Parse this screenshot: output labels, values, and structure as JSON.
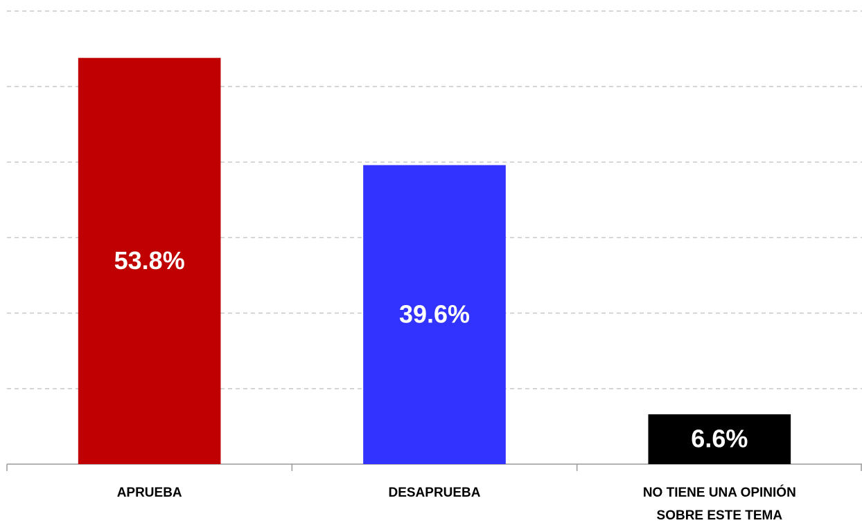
{
  "chart_data": {
    "type": "bar",
    "categories": [
      "APRUEBA",
      "DESAPRUEBA",
      "NO TIENE UNA OPINIÓN\nSOBRE ESTE TEMA"
    ],
    "values": [
      53.8,
      39.6,
      6.6
    ],
    "value_labels": [
      "53.8%",
      "39.6%",
      "6.6%"
    ],
    "colors": [
      "#c00000",
      "#3333ff",
      "#000000"
    ],
    "ylim": [
      0,
      60
    ],
    "yticks": [
      0,
      10,
      20,
      30,
      40,
      50,
      60
    ],
    "grid": true
  }
}
